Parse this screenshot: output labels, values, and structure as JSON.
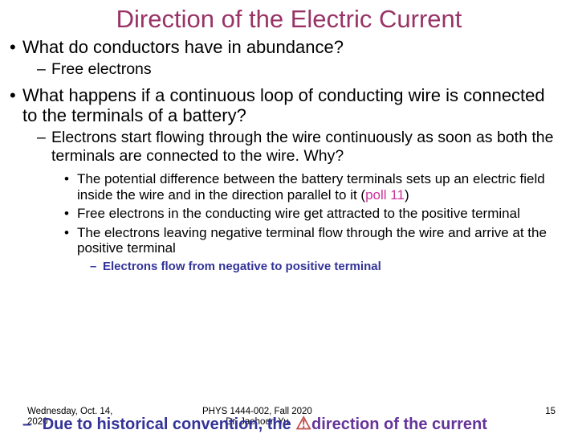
{
  "colors": {
    "title": "#993366",
    "body": "#000000",
    "poll": "#cc3399",
    "final_bold": "#333399",
    "final_second": "#663399",
    "warn_icon": "#c0504d"
  },
  "title": "Direction of the Electric Current",
  "b1a": "What do conductors have in abundance?",
  "b2a": "Free electrons",
  "b1b": "What happens if a continuous loop of conducting wire is connected to the terminals of a battery?",
  "b2b": "Electrons start flowing through the wire continuously as soon as both the terminals are connected to the wire. Why?",
  "b3a_pre": "The potential difference between the battery terminals sets up an electric field inside the wire and in the direction parallel to it (",
  "b3a_poll": "poll 11",
  "b3a_post": ")",
  "b3b": "Free electrons in the conducting wire get attracted to the positive terminal",
  "b3c": "The electrons leaving negative terminal flow through the wire and arrive at the positive terminal",
  "b4a": "Electrons flow from negative to positive terminal",
  "final_pre": "Due to historical convention, the ",
  "final_mid": "direction of the current",
  "footer": {
    "date_l1": "Wednesday, Oct. 14,",
    "date_l2": "2020",
    "course_l1": "PHYS 1444-002, Fall 2020",
    "course_l2": "Dr. Jaehoon Yu",
    "page": "15"
  },
  "warn_glyph": "⚠"
}
